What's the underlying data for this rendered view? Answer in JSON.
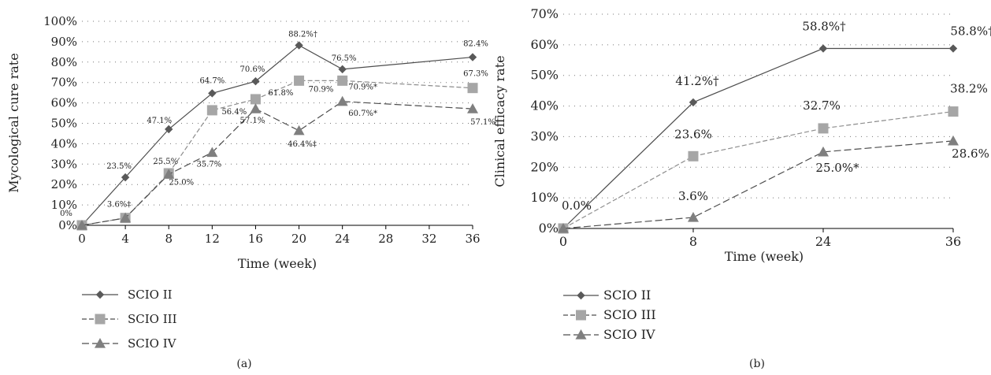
{
  "chart_data": [
    {
      "type": "line",
      "panel_label": "(a)",
      "xlabel": "Time (week)",
      "ylabel": "Mycological cure rate",
      "x_ticks": [
        0,
        4,
        8,
        12,
        16,
        20,
        24,
        28,
        32,
        36
      ],
      "x_tick_labels": [
        "0",
        "4",
        "8",
        "12",
        "16",
        "20",
        "24",
        "28",
        "32",
        "36"
      ],
      "y_ticks": [
        0,
        10,
        20,
        30,
        40,
        50,
        60,
        70,
        80,
        90,
        100
      ],
      "y_tick_labels": [
        "0%",
        "10%",
        "20%",
        "30%",
        "40%",
        "50%",
        "60%",
        "70%",
        "80%",
        "90%",
        "100%"
      ],
      "ylim": [
        0,
        100
      ],
      "xlim": [
        0,
        36
      ],
      "grid": "horizontal-dotted",
      "legend_position": "bottom-left",
      "series": [
        {
          "name": "SCIO II",
          "color": "#595959",
          "line_style": "solid",
          "marker": "diamond",
          "x": [
            0,
            4,
            8,
            12,
            16,
            20,
            24,
            36
          ],
          "y": [
            0,
            23.5,
            47.1,
            64.7,
            70.6,
            88.2,
            76.5,
            82.4
          ],
          "labels": [
            "",
            "23.5%",
            "47.1%",
            "64.7%",
            "70.6%",
            "88.2%†",
            "76.5%",
            "82.4%"
          ]
        },
        {
          "name": "SCIO III",
          "color": "#a6a6a6",
          "line_style": "dashed",
          "marker": "square",
          "x": [
            0,
            4,
            8,
            12,
            16,
            20,
            24,
            36
          ],
          "y": [
            0,
            3.6,
            25.5,
            56.4,
            61.8,
            70.9,
            70.9,
            67.3
          ],
          "labels": [
            "0%",
            "3.6%‡",
            "25.5%",
            "56.4%",
            "61.8%",
            "70.9%",
            "70.9%*",
            "67.3%"
          ]
        },
        {
          "name": "SCIO IV",
          "color": "#7f7f7f",
          "line_style": "longdash",
          "marker": "triangle",
          "x": [
            0,
            4,
            8,
            12,
            16,
            20,
            24,
            36
          ],
          "y": [
            0,
            3.6,
            25.0,
            35.7,
            57.1,
            46.4,
            60.7,
            57.1
          ],
          "labels": [
            "",
            "",
            "25.0%",
            "35.7%",
            "57.1%",
            "46.4%‡",
            "60.7%*",
            "57.1%"
          ]
        }
      ]
    },
    {
      "type": "line",
      "panel_label": "(b)",
      "xlabel": "Time (week)",
      "ylabel": "Clinical efficacy rate",
      "x_ticks": [
        0,
        8,
        24,
        36
      ],
      "x_tick_labels": [
        "0",
        "8",
        "24",
        "36"
      ],
      "x_axis_kind": "categorical-evenly-spaced",
      "y_ticks": [
        0,
        10,
        20,
        30,
        40,
        50,
        60,
        70
      ],
      "y_tick_labels": [
        "0%",
        "10%",
        "20%",
        "30%",
        "40%",
        "50%",
        "60%",
        "70%"
      ],
      "ylim": [
        0,
        70
      ],
      "grid": "horizontal-dotted",
      "legend_position": "bottom-left",
      "series": [
        {
          "name": "SCIO II",
          "color": "#595959",
          "line_style": "solid",
          "marker": "diamond",
          "x": [
            0,
            8,
            24,
            36
          ],
          "y": [
            0,
            41.2,
            58.8,
            58.8
          ],
          "labels": [
            "0.0%",
            "41.2%†",
            "58.8%†",
            "58.8%†"
          ]
        },
        {
          "name": "SCIO III",
          "color": "#a6a6a6",
          "line_style": "dashed",
          "marker": "square",
          "x": [
            0,
            8,
            24,
            36
          ],
          "y": [
            0,
            23.6,
            32.7,
            38.2
          ],
          "labels": [
            "",
            "23.6%",
            "32.7%",
            "38.2%"
          ]
        },
        {
          "name": "SCIO IV",
          "color": "#7f7f7f",
          "line_style": "longdash",
          "marker": "triangle",
          "x": [
            0,
            8,
            24,
            36
          ],
          "y": [
            0,
            3.6,
            25.0,
            28.6
          ],
          "labels": [
            "",
            "3.6%",
            "25.0%*",
            "28.6%"
          ]
        }
      ]
    }
  ]
}
